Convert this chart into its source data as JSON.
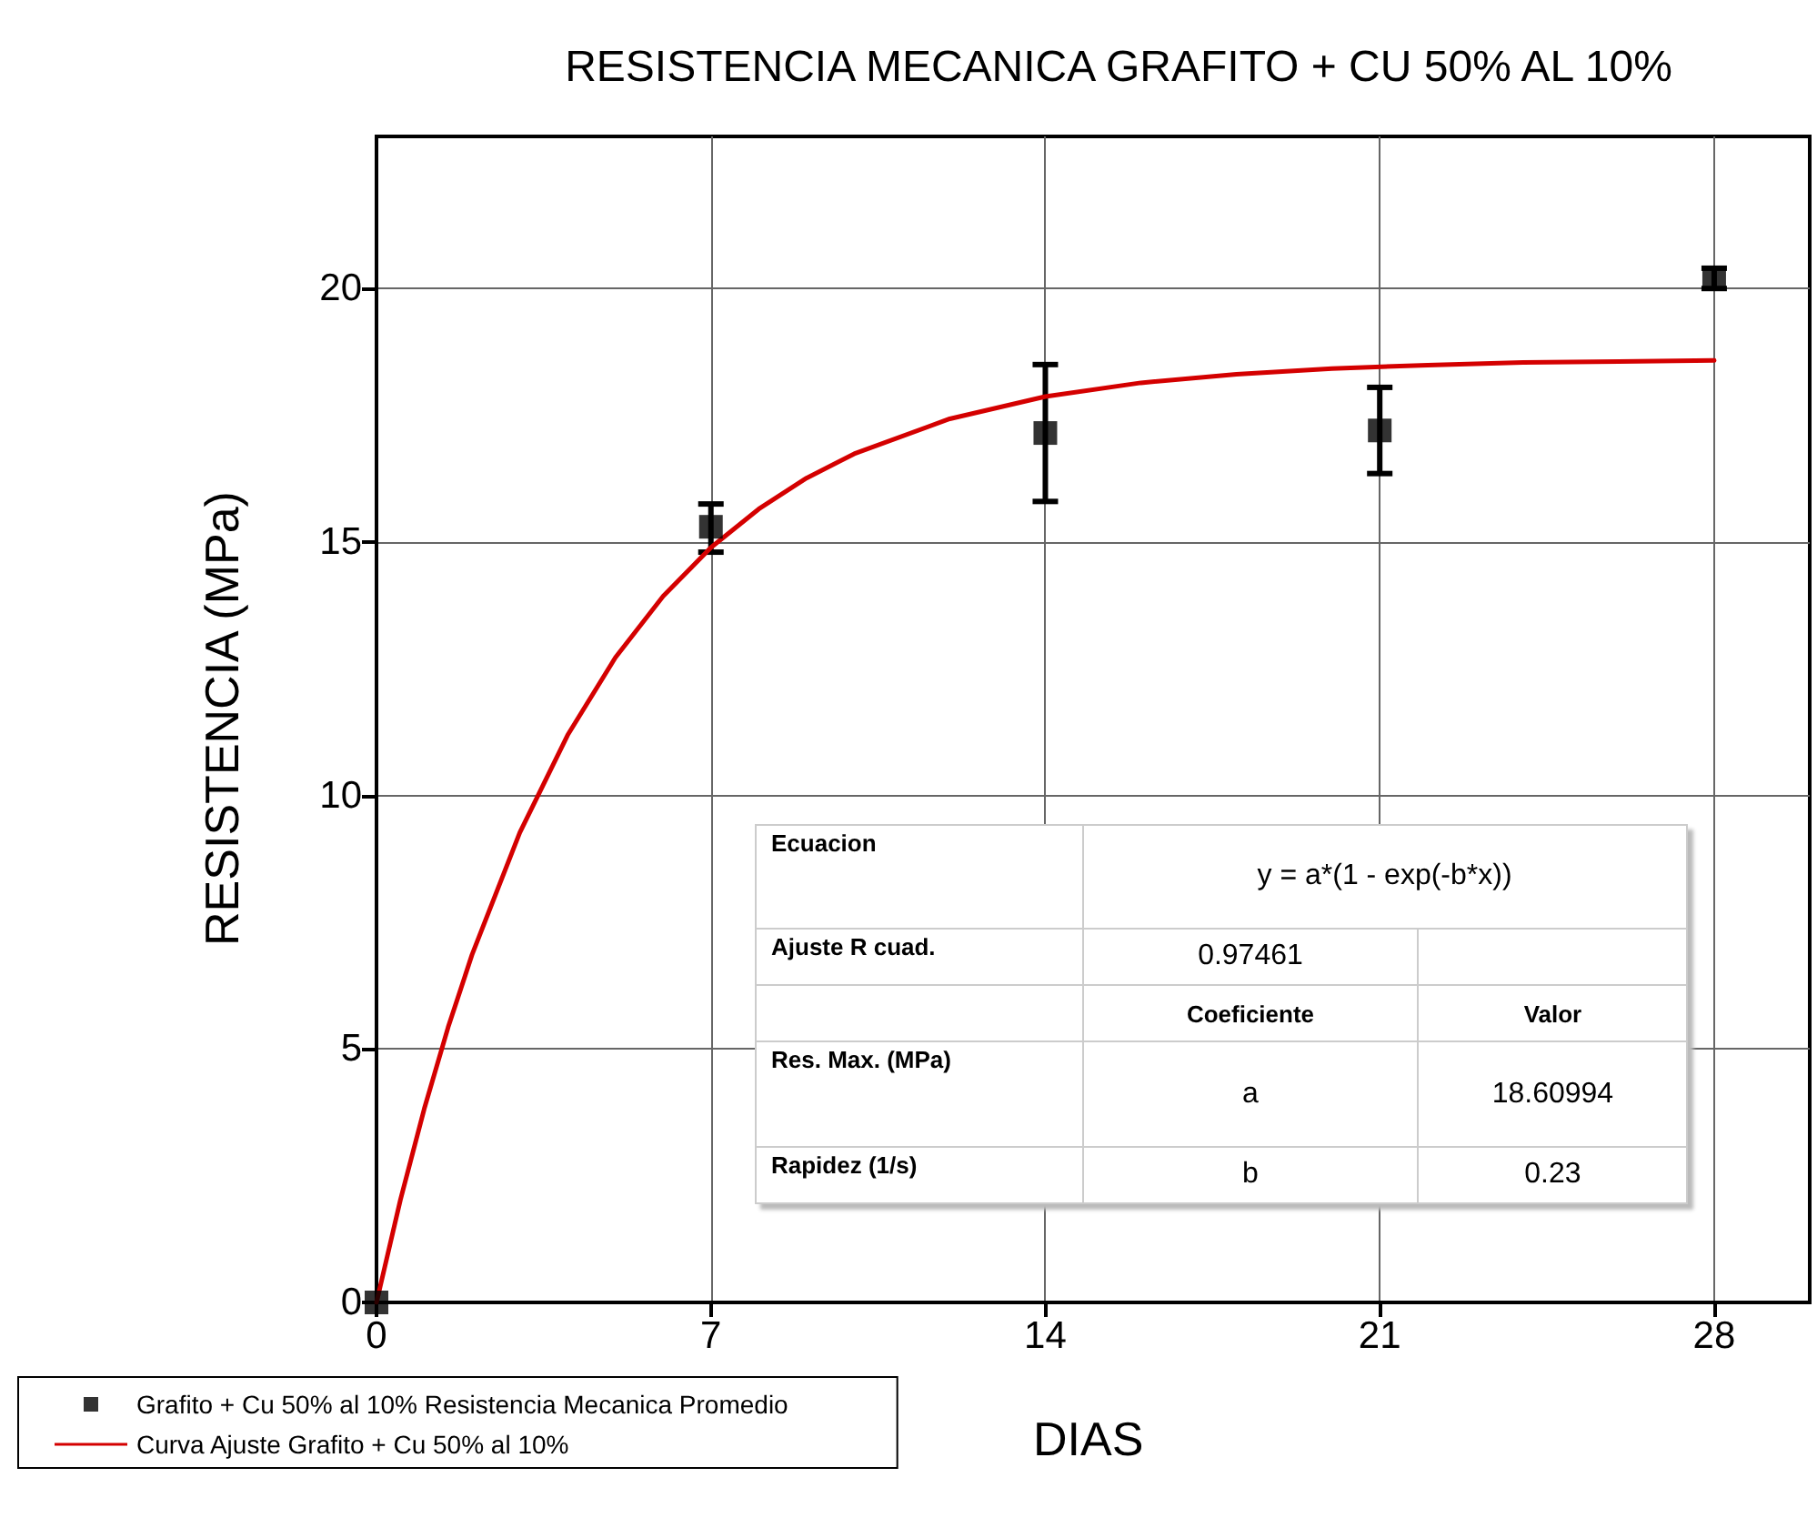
{
  "chart_data": {
    "type": "scatter",
    "title": "RESISTENCIA MECANICA GRAFITO + CU 50% AL 10%",
    "xlabel": "DIAS",
    "ylabel": "RESISTENCIA (MPa)",
    "xlim": [
      0,
      30
    ],
    "xticks": [
      0,
      7,
      14,
      21,
      28
    ],
    "ylim": [
      0,
      23
    ],
    "yticks": [
      0,
      5,
      10,
      15,
      20
    ],
    "grid": true,
    "legend": "bottom left",
    "marker": "square",
    "series": [
      {
        "name": "Grafito + Cu 50% al 10% Resistencia Mecanica Promedio",
        "color": "#000000",
        "x": [
          0,
          7,
          14,
          21,
          28
        ],
        "values": [
          0,
          15.3,
          17.15,
          17.2,
          20.2
        ],
        "errors": [
          null,
          [
            14.8,
            15.75
          ],
          [
            15.8,
            18.5
          ],
          [
            16.35,
            18.05
          ],
          [
            20,
            20.4
          ]
        ]
      },
      {
        "name": "Curva Ajuste Grafito + Cu 50% al 10%",
        "type": "line",
        "marker": "none",
        "color": "#d40000",
        "x": [
          0,
          0.5,
          1,
          1.5,
          2,
          3,
          4,
          5,
          6,
          7,
          8,
          9,
          10,
          12,
          14,
          16,
          18,
          20,
          22,
          24,
          26,
          28
        ],
        "values": [
          0,
          2.02,
          3.82,
          5.43,
          6.86,
          9.27,
          11.19,
          12.72,
          13.93,
          14.89,
          15.65,
          16.26,
          16.74,
          17.43,
          17.87,
          18.14,
          18.31,
          18.42,
          18.49,
          18.54,
          18.56,
          18.58
        ]
      }
    ],
    "annotations": [
      "Ecuacion",
      "y = a*(1 - exp(-b*x))",
      "Ajuste R cuad.",
      "0.97461",
      "Coeficiente",
      "Valor",
      "Res. Max. (MPa)",
      "a",
      "18.60994",
      "Rapidez (1/s)",
      "b",
      "0.23"
    ]
  }
}
